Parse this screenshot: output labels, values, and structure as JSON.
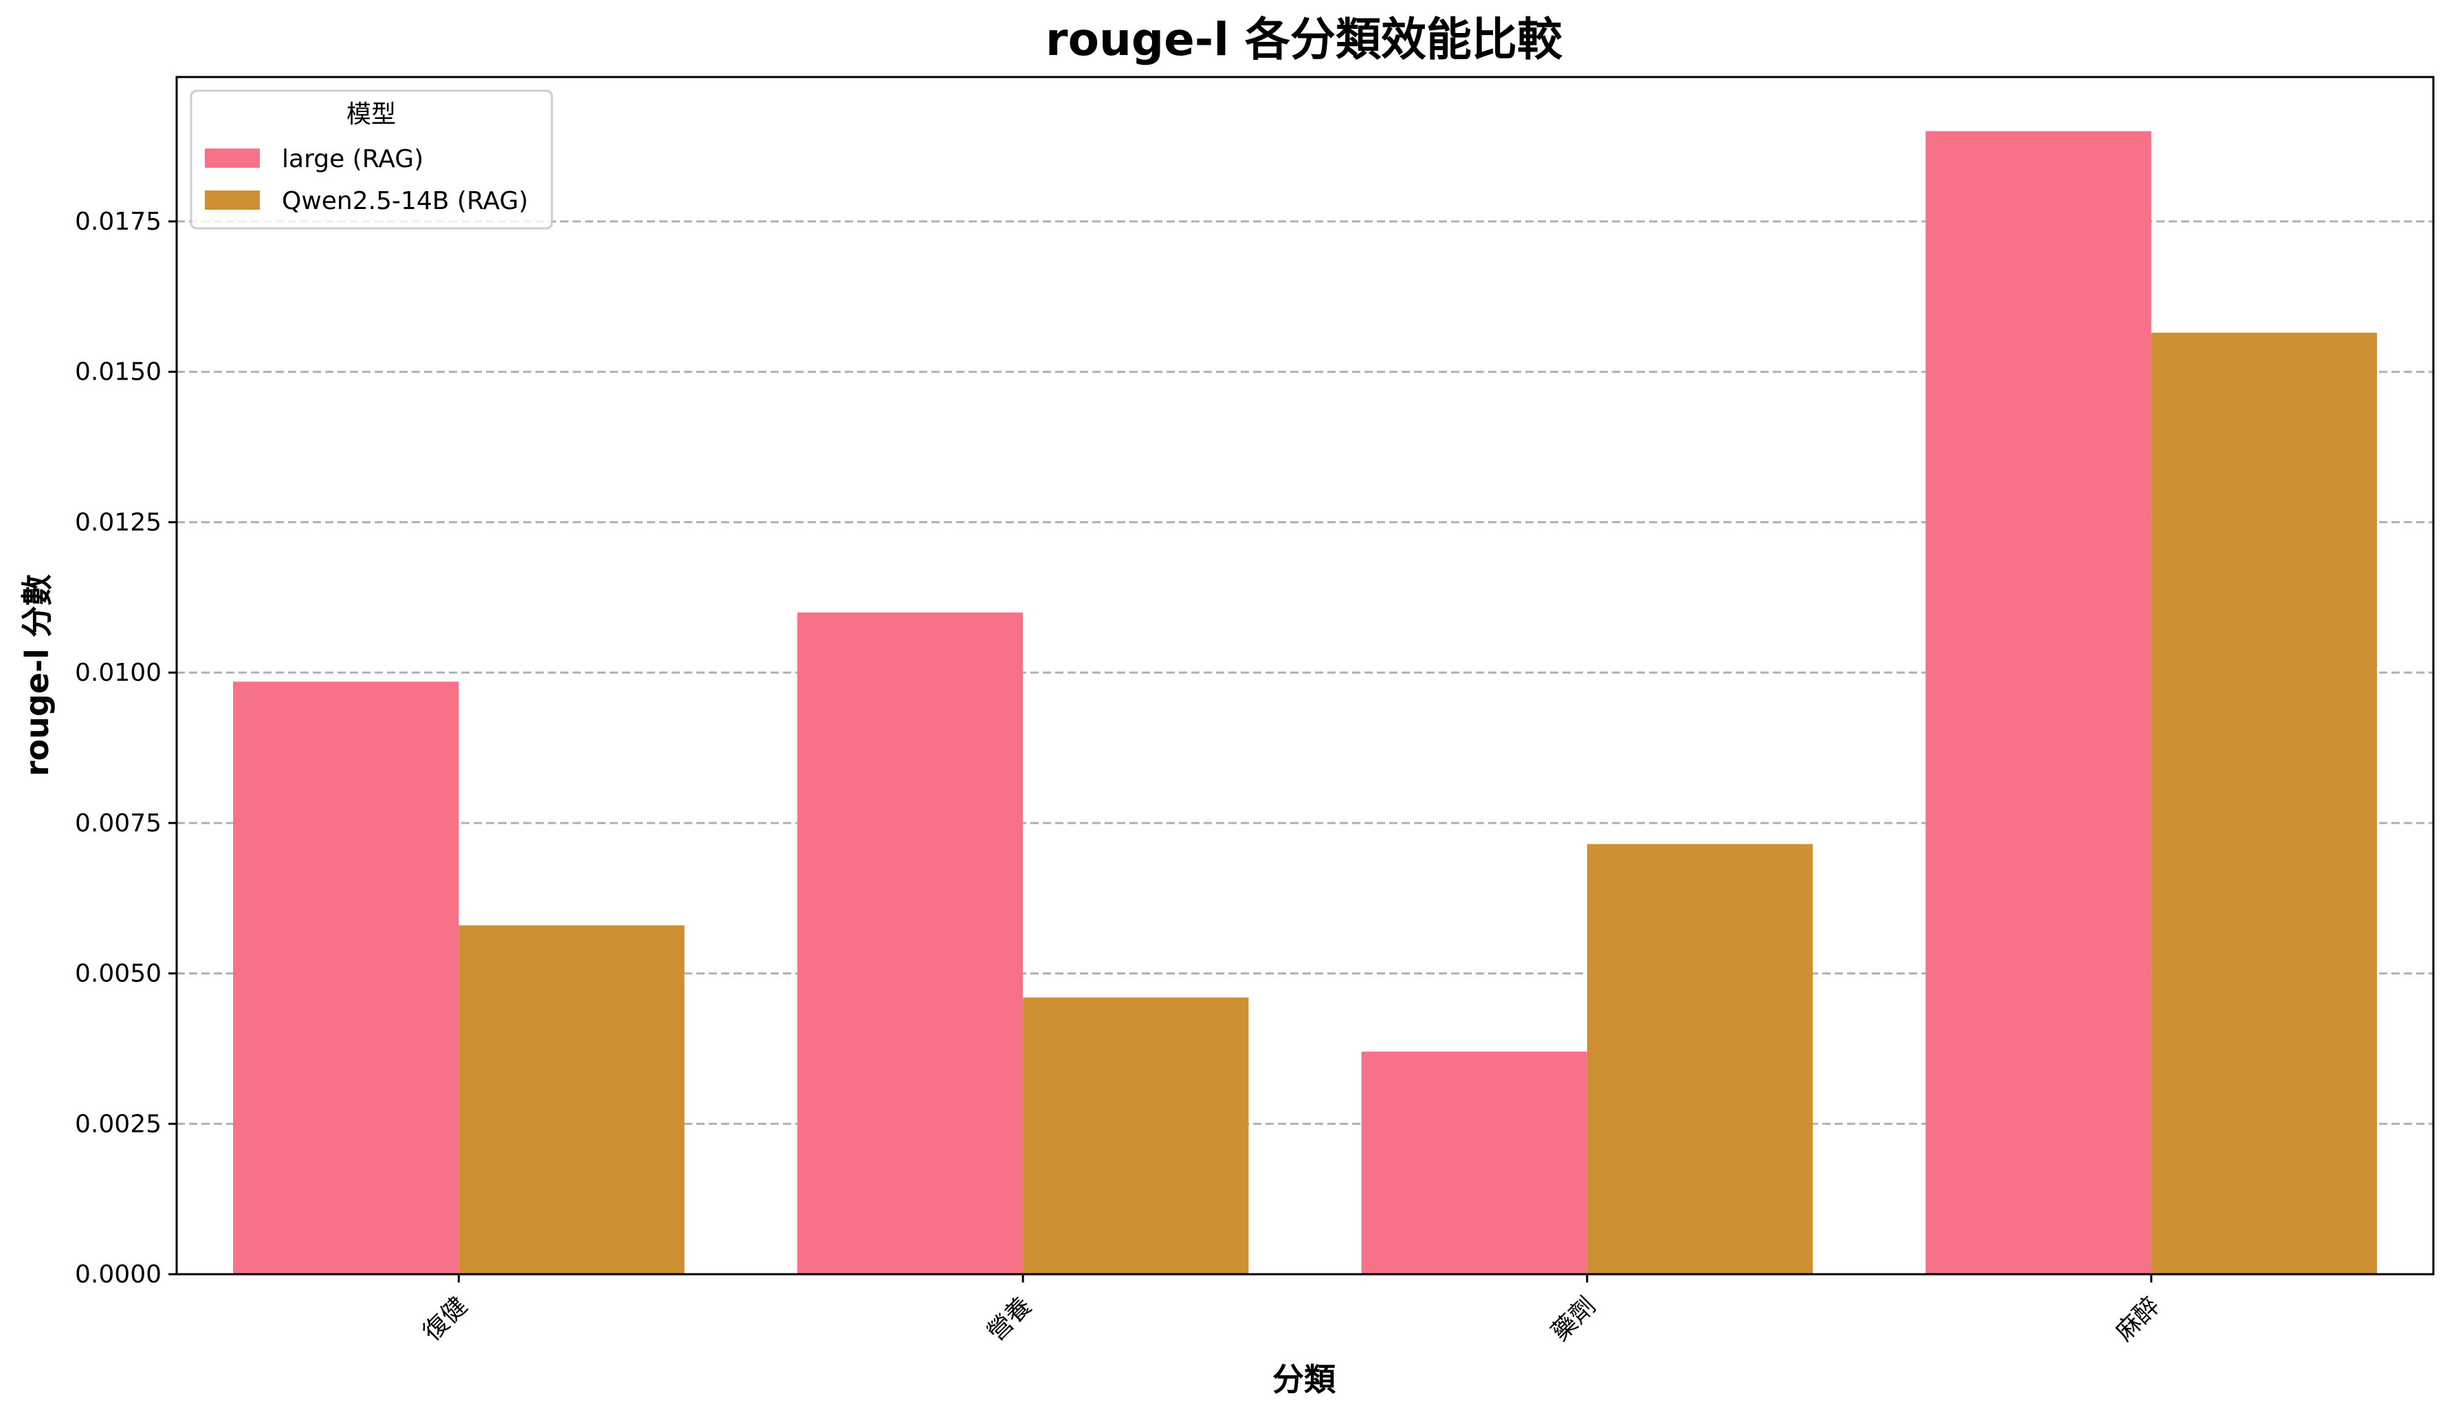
{
  "chart_data": {
    "type": "bar",
    "title": "rouge-l 各分類效能比較",
    "xlabel": "分類",
    "ylabel": "rouge-l 分數",
    "categories": [
      "復健",
      "營養",
      "藥劑",
      "麻醉"
    ],
    "series": [
      {
        "name": "large (RAG)",
        "color": "#f77189",
        "values": [
          0.00985,
          0.011,
          0.0037,
          0.019
        ]
      },
      {
        "name": "Qwen2.5-14B (RAG)",
        "color": "#ce9032",
        "values": [
          0.0058,
          0.0046,
          0.00715,
          0.01565
        ]
      }
    ],
    "ylim": [
      0,
      0.0199
    ],
    "yticks": [
      "0.0000",
      "0.0025",
      "0.0050",
      "0.0075",
      "0.0100",
      "0.0125",
      "0.0150",
      "0.0175"
    ],
    "ytick_values": [
      0,
      0.0025,
      0.005,
      0.0075,
      0.01,
      0.0125,
      0.015,
      0.0175
    ],
    "grid": "y-dashed",
    "legend": {
      "title": "模型",
      "placement": "top-left"
    }
  }
}
